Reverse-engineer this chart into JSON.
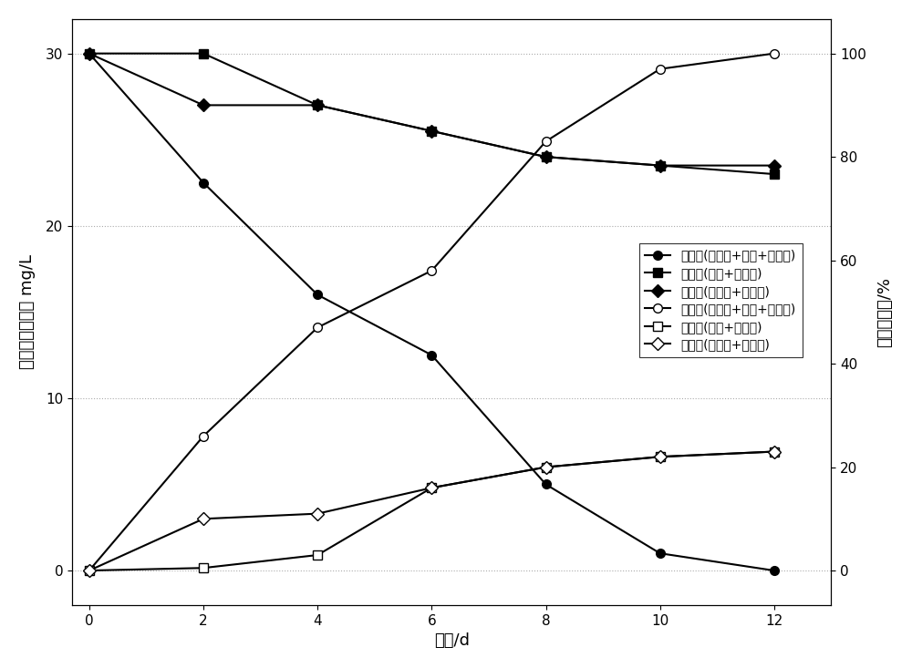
{
  "x": [
    0,
    2,
    4,
    6,
    8,
    10,
    12
  ],
  "residual_1": [
    30,
    22.5,
    16,
    12.5,
    5,
    1,
    0
  ],
  "residual_2": [
    30,
    30,
    27,
    25.5,
    24,
    23.5,
    23
  ],
  "residual_3": [
    30,
    27,
    27,
    25.5,
    24,
    23.5,
    23.5
  ],
  "removal_1": [
    0,
    26,
    47,
    58,
    83,
    97,
    100
  ],
  "removal_2": [
    0,
    0.5,
    3,
    16,
    20,
    22,
    23
  ],
  "removal_3": [
    0,
    10,
    11,
    16,
    20,
    22,
    23
  ],
  "ylabel_left": "总氧化氮残余量 mg/L",
  "ylabel_right": "总氮去除率/%",
  "xlabel": "时间/d",
  "legend_labels": [
    "残余量(黄铁矿+硫磺+菱铁矿)",
    "残余量(硫磺+菱铁矿)",
    "残余量(黄铁矿+菱铁矿)",
    "去除率(黄铁矿+硫磺+菱铁矿)",
    "去除率(硫磺+菱铁矿)",
    "去除率(黄铁矿+菱铁矿)"
  ],
  "ylim_left": [
    -2,
    32
  ],
  "ylim_right": [
    -6.67,
    106.67
  ],
  "xlim": [
    -0.3,
    13
  ],
  "background_color": "#ffffff",
  "fontsize_label": 13,
  "fontsize_tick": 11,
  "fontsize_legend": 10
}
